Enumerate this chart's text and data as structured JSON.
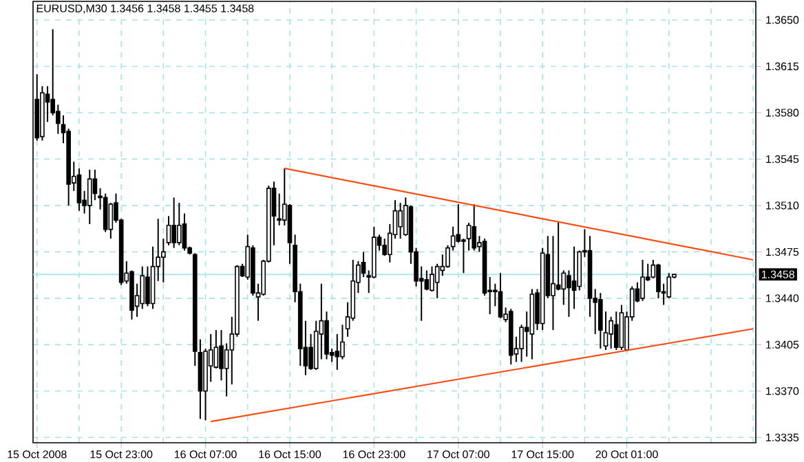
{
  "chart_data": {
    "type": "candlestick",
    "title": "EURUSD,M30  1.3456 1.3458 1.3455 1.3458",
    "categories": [
      "15 Oct 2008",
      null,
      null,
      null,
      null,
      null,
      null,
      null,
      null,
      null,
      null,
      null,
      null,
      null,
      null,
      null,
      "15 Oct 23:00",
      null,
      null,
      null,
      null,
      null,
      null,
      null,
      null,
      null,
      null,
      null,
      null,
      null,
      null,
      null,
      "16 Oct 07:00",
      null,
      null,
      null,
      null,
      null,
      null,
      null,
      null,
      null,
      null,
      null,
      null,
      null,
      null,
      null,
      "16 Oct 15:00",
      null,
      null,
      null,
      null,
      null,
      null,
      null,
      null,
      null,
      null,
      null,
      null,
      null,
      null,
      null,
      "16 Oct 23:00",
      null,
      null,
      null,
      null,
      null,
      null,
      null,
      null,
      null,
      null,
      null,
      null,
      null,
      null,
      null,
      "17 Oct 07:00",
      null,
      null,
      null,
      null,
      null,
      null,
      null,
      null,
      null,
      null,
      null,
      null,
      null,
      null,
      null,
      "17 Oct 15:00",
      null,
      null,
      null,
      null,
      null,
      null,
      null,
      null,
      null,
      null,
      null,
      null,
      null,
      null,
      null,
      "20 Oct 01:00",
      null,
      null,
      null,
      null,
      null,
      null,
      null,
      null,
      null,
      null,
      null,
      null,
      null,
      null,
      null,
      null,
      null,
      null,
      null,
      null,
      null,
      null,
      null,
      null
    ],
    "color": "#000000",
    "ohlc": [
      [
        1.359,
        1.3609,
        1.3559,
        1.3561
      ],
      [
        1.3562,
        1.36,
        1.3559,
        1.3595
      ],
      [
        1.3594,
        1.36,
        1.3573,
        1.3588
      ],
      [
        1.359,
        1.3643,
        1.3578,
        1.358
      ],
      [
        1.3581,
        1.3586,
        1.3564,
        1.3572
      ],
      [
        1.3571,
        1.3578,
        1.3557,
        1.3565
      ],
      [
        1.3566,
        1.3568,
        1.351,
        1.3526
      ],
      [
        1.3527,
        1.3543,
        1.3521,
        1.3532
      ],
      [
        1.3533,
        1.3538,
        1.3506,
        1.3512
      ],
      [
        1.3514,
        1.3521,
        1.3504,
        1.351
      ],
      [
        1.351,
        1.3537,
        1.3496,
        1.353
      ],
      [
        1.353,
        1.3537,
        1.3514,
        1.3519
      ],
      [
        1.3517,
        1.3523,
        1.3507,
        1.3516
      ],
      [
        1.3516,
        1.3519,
        1.349,
        1.3492
      ],
      [
        1.3492,
        1.3512,
        1.3485,
        1.3511
      ],
      [
        1.3512,
        1.3519,
        1.3497,
        1.3499
      ],
      [
        1.3499,
        1.35,
        1.345,
        1.3452
      ],
      [
        1.3453,
        1.3468,
        1.3451,
        1.3459
      ],
      [
        1.346,
        1.3461,
        1.3424,
        1.3431
      ],
      [
        1.3434,
        1.3451,
        1.3426,
        1.3442
      ],
      [
        1.3436,
        1.3464,
        1.3432,
        1.3457
      ],
      [
        1.3456,
        1.3464,
        1.3434,
        1.3436
      ],
      [
        1.3436,
        1.3479,
        1.3432,
        1.3464
      ],
      [
        1.3464,
        1.35,
        1.3453,
        1.3471
      ],
      [
        1.3471,
        1.3485,
        1.3452,
        1.3475
      ],
      [
        1.3482,
        1.3502,
        1.348,
        1.3495
      ],
      [
        1.3495,
        1.3516,
        1.3478,
        1.3482
      ],
      [
        1.3482,
        1.3512,
        1.348,
        1.3495
      ],
      [
        1.3496,
        1.3504,
        1.3476,
        1.3478
      ],
      [
        1.3478,
        1.3479,
        1.3473,
        1.3474
      ],
      [
        1.3473,
        1.3474,
        1.3389,
        1.34
      ],
      [
        1.3399,
        1.3409,
        1.3349,
        1.337
      ],
      [
        1.337,
        1.3402,
        1.3348,
        1.34
      ],
      [
        1.3389,
        1.3413,
        1.3377,
        1.3401
      ],
      [
        1.3388,
        1.3416,
        1.3387,
        1.3403
      ],
      [
        1.3404,
        1.3416,
        1.3378,
        1.3387
      ],
      [
        1.3387,
        1.3406,
        1.3366,
        1.3401
      ],
      [
        1.3401,
        1.3426,
        1.3375,
        1.3413
      ],
      [
        1.3413,
        1.3465,
        1.3411,
        1.3464
      ],
      [
        1.3464,
        1.3466,
        1.3456,
        1.3457
      ],
      [
        1.3456,
        1.3488,
        1.3454,
        1.3479
      ],
      [
        1.3478,
        1.348,
        1.3442,
        1.3444
      ],
      [
        1.3441,
        1.3451,
        1.3423,
        1.3444
      ],
      [
        1.3443,
        1.3469,
        1.3442,
        1.3468
      ],
      [
        1.3468,
        1.3525,
        1.3467,
        1.3523
      ],
      [
        1.3523,
        1.3528,
        1.348,
        1.3502
      ],
      [
        1.35,
        1.3519,
        1.3495,
        1.3499
      ],
      [
        1.3499,
        1.3538,
        1.3495,
        1.3511
      ],
      [
        1.351,
        1.3511,
        1.3466,
        1.3482
      ],
      [
        1.348,
        1.3488,
        1.3437,
        1.3445
      ],
      [
        1.3445,
        1.3451,
        1.3389,
        1.3402
      ],
      [
        1.3403,
        1.3423,
        1.3382,
        1.3389
      ],
      [
        1.3403,
        1.3413,
        1.3386,
        1.3387
      ],
      [
        1.3387,
        1.3423,
        1.3386,
        1.3415
      ],
      [
        1.3413,
        1.3451,
        1.3394,
        1.3423
      ],
      [
        1.3423,
        1.343,
        1.3394,
        1.3398
      ],
      [
        1.3399,
        1.3402,
        1.3392,
        1.3397
      ],
      [
        1.34,
        1.3413,
        1.3386,
        1.3396
      ],
      [
        1.3396,
        1.342,
        1.3394,
        1.3407
      ],
      [
        1.3417,
        1.3437,
        1.3411,
        1.3426
      ],
      [
        1.3425,
        1.3469,
        1.3423,
        1.3453
      ],
      [
        1.3452,
        1.3468,
        1.3444,
        1.3465
      ],
      [
        1.3467,
        1.3475,
        1.3456,
        1.3459
      ],
      [
        1.3457,
        1.3461,
        1.3444,
        1.3456
      ],
      [
        1.3456,
        1.3494,
        1.3455,
        1.3486
      ],
      [
        1.3486,
        1.3488,
        1.3476,
        1.348
      ],
      [
        1.348,
        1.3485,
        1.3472,
        1.3473
      ],
      [
        1.3473,
        1.3496,
        1.3467,
        1.3489
      ],
      [
        1.3488,
        1.3514,
        1.3485,
        1.3506
      ],
      [
        1.3494,
        1.3512,
        1.3485,
        1.3506
      ],
      [
        1.3488,
        1.3516,
        1.3487,
        1.351
      ],
      [
        1.3509,
        1.351,
        1.3466,
        1.3475
      ],
      [
        1.3475,
        1.3478,
        1.3449,
        1.3453
      ],
      [
        1.3455,
        1.3464,
        1.3423,
        1.3453
      ],
      [
        1.3454,
        1.3461,
        1.3446,
        1.3447
      ],
      [
        1.3446,
        1.3464,
        1.3445,
        1.3458
      ],
      [
        1.3452,
        1.3466,
        1.344,
        1.3464
      ],
      [
        1.3461,
        1.3473,
        1.3457,
        1.3464
      ],
      [
        1.3464,
        1.348,
        1.3463,
        1.3478
      ],
      [
        1.3479,
        1.3494,
        1.3476,
        1.3487
      ],
      [
        1.3488,
        1.3511,
        1.3482,
        1.3483
      ],
      [
        1.3484,
        1.3485,
        1.3459,
        1.3483
      ],
      [
        1.3485,
        1.3497,
        1.3476,
        1.3495
      ],
      [
        1.3494,
        1.3511,
        1.3476,
        1.3478
      ],
      [
        1.3479,
        1.3487,
        1.3475,
        1.3482
      ],
      [
        1.3483,
        1.3485,
        1.3442,
        1.3444
      ],
      [
        1.3446,
        1.3456,
        1.3428,
        1.3445
      ],
      [
        1.3446,
        1.3451,
        1.3434,
        1.3445
      ],
      [
        1.3445,
        1.3459,
        1.3425,
        1.3426
      ],
      [
        1.3424,
        1.3433,
        1.3422,
        1.3428
      ],
      [
        1.343,
        1.3432,
        1.339,
        1.3397
      ],
      [
        1.3398,
        1.3411,
        1.3392,
        1.3402
      ],
      [
        1.3402,
        1.342,
        1.3392,
        1.3418
      ],
      [
        1.3418,
        1.343,
        1.3396,
        1.3415
      ],
      [
        1.3413,
        1.3447,
        1.3394,
        1.3443
      ],
      [
        1.3444,
        1.3447,
        1.3416,
        1.3421
      ],
      [
        1.3421,
        1.3478,
        1.3416,
        1.3474
      ],
      [
        1.3473,
        1.3487,
        1.344,
        1.3442
      ],
      [
        1.3442,
        1.3487,
        1.3416,
        1.3451
      ],
      [
        1.345,
        1.3497,
        1.3446,
        1.3447
      ],
      [
        1.3447,
        1.3461,
        1.3435,
        1.3459
      ],
      [
        1.3457,
        1.3461,
        1.3426,
        1.3448
      ],
      [
        1.3453,
        1.3479,
        1.3432,
        1.3446
      ],
      [
        1.3449,
        1.3476,
        1.3446,
        1.3475
      ],
      [
        1.3476,
        1.3492,
        1.3471,
        1.3475
      ],
      [
        1.3476,
        1.3487,
        1.3426,
        1.344
      ],
      [
        1.344,
        1.3447,
        1.3413,
        1.3437
      ],
      [
        1.3439,
        1.3444,
        1.3402,
        1.3416
      ],
      [
        1.3404,
        1.343,
        1.3401,
        1.3414
      ],
      [
        1.3413,
        1.3426,
        1.3402,
        1.3423
      ],
      [
        1.342,
        1.343,
        1.3401,
        1.3403
      ],
      [
        1.3403,
        1.3435,
        1.3401,
        1.3429
      ],
      [
        1.3401,
        1.343,
        1.34,
        1.3426
      ],
      [
        1.3426,
        1.3449,
        1.3423,
        1.3447
      ],
      [
        1.3447,
        1.3452,
        1.3437,
        1.3438
      ],
      [
        1.344,
        1.3469,
        1.3438,
        1.3456
      ],
      [
        1.3456,
        1.3466,
        1.3453,
        1.3454
      ],
      [
        1.3456,
        1.3469,
        1.3455,
        1.3465
      ],
      [
        1.3465,
        1.3466,
        1.344,
        1.3445
      ],
      [
        1.3445,
        1.3451,
        1.3435,
        1.3444
      ],
      [
        1.3441,
        1.3459,
        1.344,
        1.3456
      ],
      [
        1.3456,
        1.3458,
        1.3455,
        1.3458
      ],
      null,
      null,
      null,
      null,
      null,
      null,
      null,
      null,
      null,
      null,
      null,
      null,
      null,
      null,
      null
    ],
    "series": [
      {
        "type": "line",
        "color": "#ff4a14",
        "values": [
          null,
          null,
          null,
          null,
          null,
          null,
          null,
          null,
          null,
          null,
          null,
          null,
          null,
          null,
          null,
          null,
          null,
          null,
          null,
          null,
          null,
          null,
          null,
          null,
          null,
          null,
          null,
          null,
          null,
          null,
          null,
          null,
          null,
          null,
          null,
          null,
          null,
          null,
          null,
          null,
          null,
          null,
          null,
          null,
          null,
          null,
          null,
          1.3538,
          null,
          null,
          null,
          null,
          null,
          null,
          null,
          null,
          null,
          null,
          null,
          null,
          null,
          null,
          null,
          null,
          null,
          null,
          null,
          null,
          null,
          null,
          null,
          null,
          null,
          null,
          null,
          null,
          null,
          null,
          null,
          null,
          null,
          null,
          null,
          null,
          null,
          null,
          null,
          null,
          null,
          null,
          null,
          null,
          null,
          null,
          null,
          null,
          null,
          null,
          null,
          null,
          null,
          null,
          null,
          null,
          null,
          null,
          null,
          null,
          null,
          null,
          null,
          null,
          null,
          null,
          null,
          null,
          null,
          null,
          null,
          null,
          null,
          null,
          null,
          null,
          null,
          null,
          null,
          null,
          null,
          null,
          null,
          null,
          null,
          null,
          null,
          null,
          1.3469
        ]
      },
      {
        "type": "line",
        "color": "#ff4a14",
        "values": [
          null,
          null,
          null,
          null,
          null,
          null,
          null,
          null,
          null,
          null,
          null,
          null,
          null,
          null,
          null,
          null,
          null,
          null,
          null,
          null,
          null,
          null,
          null,
          null,
          null,
          null,
          null,
          null,
          null,
          null,
          null,
          null,
          null,
          1.3347,
          null,
          null,
          null,
          null,
          null,
          null,
          null,
          null,
          null,
          null,
          null,
          null,
          null,
          null,
          null,
          null,
          null,
          null,
          null,
          null,
          null,
          null,
          null,
          null,
          null,
          null,
          null,
          null,
          null,
          null,
          null,
          null,
          null,
          null,
          null,
          null,
          null,
          null,
          null,
          null,
          null,
          null,
          null,
          null,
          null,
          null,
          null,
          null,
          null,
          null,
          null,
          null,
          null,
          null,
          null,
          null,
          null,
          null,
          null,
          null,
          null,
          null,
          null,
          null,
          null,
          null,
          null,
          null,
          null,
          null,
          null,
          null,
          null,
          null,
          null,
          null,
          null,
          null,
          null,
          null,
          null,
          null,
          null,
          null,
          null,
          null,
          null,
          null,
          null,
          null,
          null,
          null,
          null,
          null,
          null,
          null,
          null,
          null,
          null,
          null,
          null,
          null,
          1.3417
        ]
      }
    ],
    "ylim": [
      1.3331,
      1.3664
    ],
    "yticks": [
      1.3335,
      {
        "value": 1.337,
        "label": "1.3370"
      },
      1.3405,
      {
        "value": 1.344,
        "label": "1.3440"
      },
      1.3475,
      {
        "value": 1.351,
        "label": "1.3510"
      },
      1.3545,
      {
        "value": 1.358,
        "label": "1.3580"
      },
      1.3615,
      {
        "value": 1.365,
        "label": "1.3650"
      }
    ],
    "ref_lines": [
      {
        "axis": "y",
        "value": 1.3458,
        "label": "1.3458",
        "color": "#a8e8e8"
      }
    ],
    "grid": true
  }
}
